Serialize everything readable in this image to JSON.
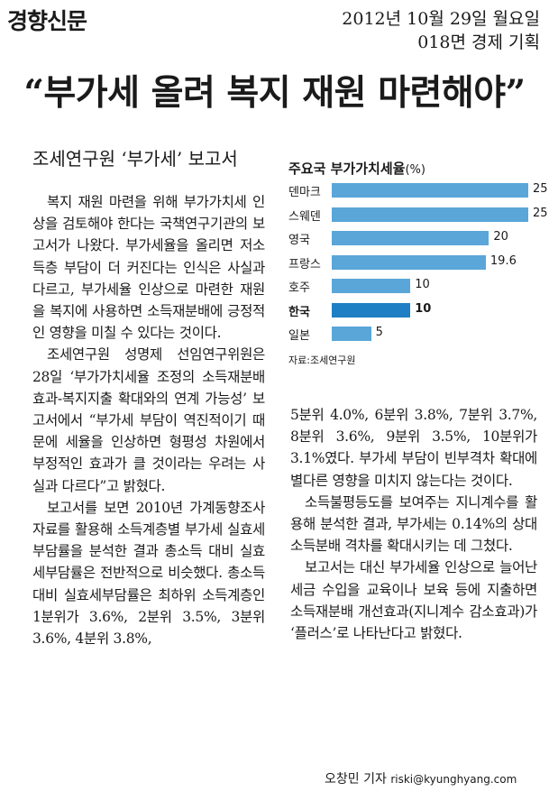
{
  "header": {
    "masthead": "경향신문",
    "date": "2012년 10월 29일 월요일",
    "section": "018면 경제 기획"
  },
  "headline": "“부가세 올려 복지 재원 마련해야”",
  "subheadline": "조세연구원 ‘부가세’ 보고서",
  "chart_data": {
    "type": "bar",
    "title": "주요국 부가가치세율",
    "unit": "(%)",
    "categories": [
      "덴마크",
      "스웨덴",
      "영국",
      "프랑스",
      "호주",
      "한국",
      "일본"
    ],
    "values": [
      25,
      25,
      20,
      19.6,
      10,
      10,
      5
    ],
    "value_labels": [
      "25",
      "25",
      "20",
      "19.6",
      "10",
      "10",
      "5"
    ],
    "highlight": "한국",
    "source": "자료:조세연구원",
    "xlim": [
      0,
      25
    ],
    "colors": {
      "bar": "#5aa6d8",
      "highlight": "#1e7fc4"
    }
  },
  "body": {
    "left": [
      "복지 재원 마련을 위해 부가가치세 인상을 검토해야 한다는 국책연구기관의 보고서가 나왔다. 부가세율을 올리면 저소득층 부담이 더 커진다는 인식은 사실과 다르고, 부가세율 인상으로 마련한 재원을 복지에 사용하면 소득재분배에 긍정적인 영향을 미칠 수 있다는 것이다.",
      "조세연구원 성명제 선임연구위원은 28일 ‘부가가치세율 조정의 소득재분배 효과-복지지출 확대와의 연계 가능성’ 보고서에서 “부가세 부담이 역진적이기 때문에 세율을 인상하면 형평성 차원에서 부정적인 효과가 클 것이라는 우려는 사실과 다르다”고 밝혔다.",
      "보고서를 보면 2010년 가계동향조사 자료를 활용해 소득계층별 부가세 실효세부담률을 분석한 결과 총소득 대비 실효세부담률은 전반적으로 비슷했다. 총소득 대비 실효세부담률은 최하위 소득계층인 1분위가 3.6%, 2분위 3.5%, 3분위 3.6%, 4분위 3.8%,"
    ],
    "right": [
      "5분위 4.0%, 6분위 3.8%, 7분위 3.7%, 8분위 3.6%, 9분위 3.5%, 10분위가 3.1%였다. 부가세 부담이 빈부격차 확대에 별다른 영향을 미치지 않는다는 것이다.",
      "소득불평등도를 보여주는 지니계수를 활용해 분석한 결과, 부가세는 0.14%의 상대소득분배 격차를 확대시키는 데 그쳤다.",
      "보고서는 대신 부가세율 인상으로 늘어난 세금 수입을 교육이나 보육 등에 지출하면 소득재분배 개선효과(지니계수 감소효과)가 ‘플러스’로 나타난다고 밝혔다."
    ]
  },
  "byline": {
    "name": "오창민 기자",
    "email": "riski@kyunghyang.com"
  }
}
